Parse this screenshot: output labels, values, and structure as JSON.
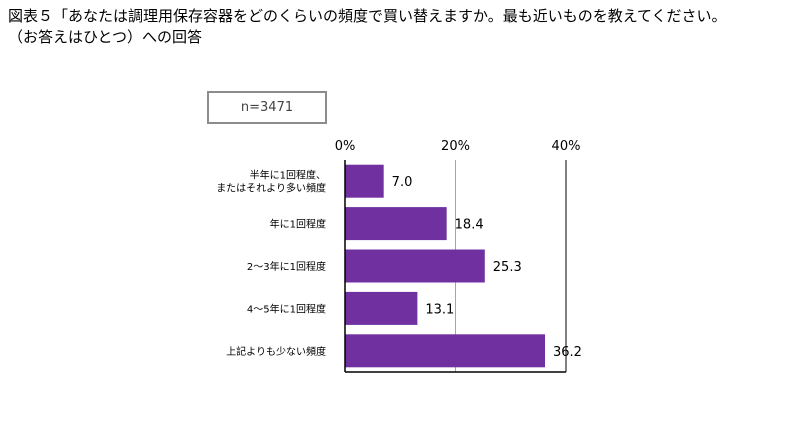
{
  "title": {
    "line1": "図表５「あなたは調理用保存容器をどのくらいの頻度で買い替えますか。最も近いものを教えてください。",
    "line2": "（お答えはひとつ）への回答"
  },
  "sample_label": "n=3471",
  "chart_data": {
    "type": "bar",
    "orientation": "horizontal",
    "categories": [
      [
        "半年に1回程度、",
        "またはそれより多い頻度"
      ],
      [
        "年に1回程度"
      ],
      [
        "2～3年に1回程度"
      ],
      [
        "4～5年に1回程度"
      ],
      [
        "上記よりも少ない頻度"
      ]
    ],
    "values": [
      7.0,
      18.4,
      25.3,
      13.1,
      36.2
    ],
    "value_labels": [
      "7.0",
      "18.4",
      "25.3",
      "13.1",
      "36.2"
    ],
    "xlim": [
      0,
      40
    ],
    "x_ticks": [
      "0%",
      "20%",
      "40%"
    ],
    "bar_color": "#7030a0",
    "grid": true
  }
}
